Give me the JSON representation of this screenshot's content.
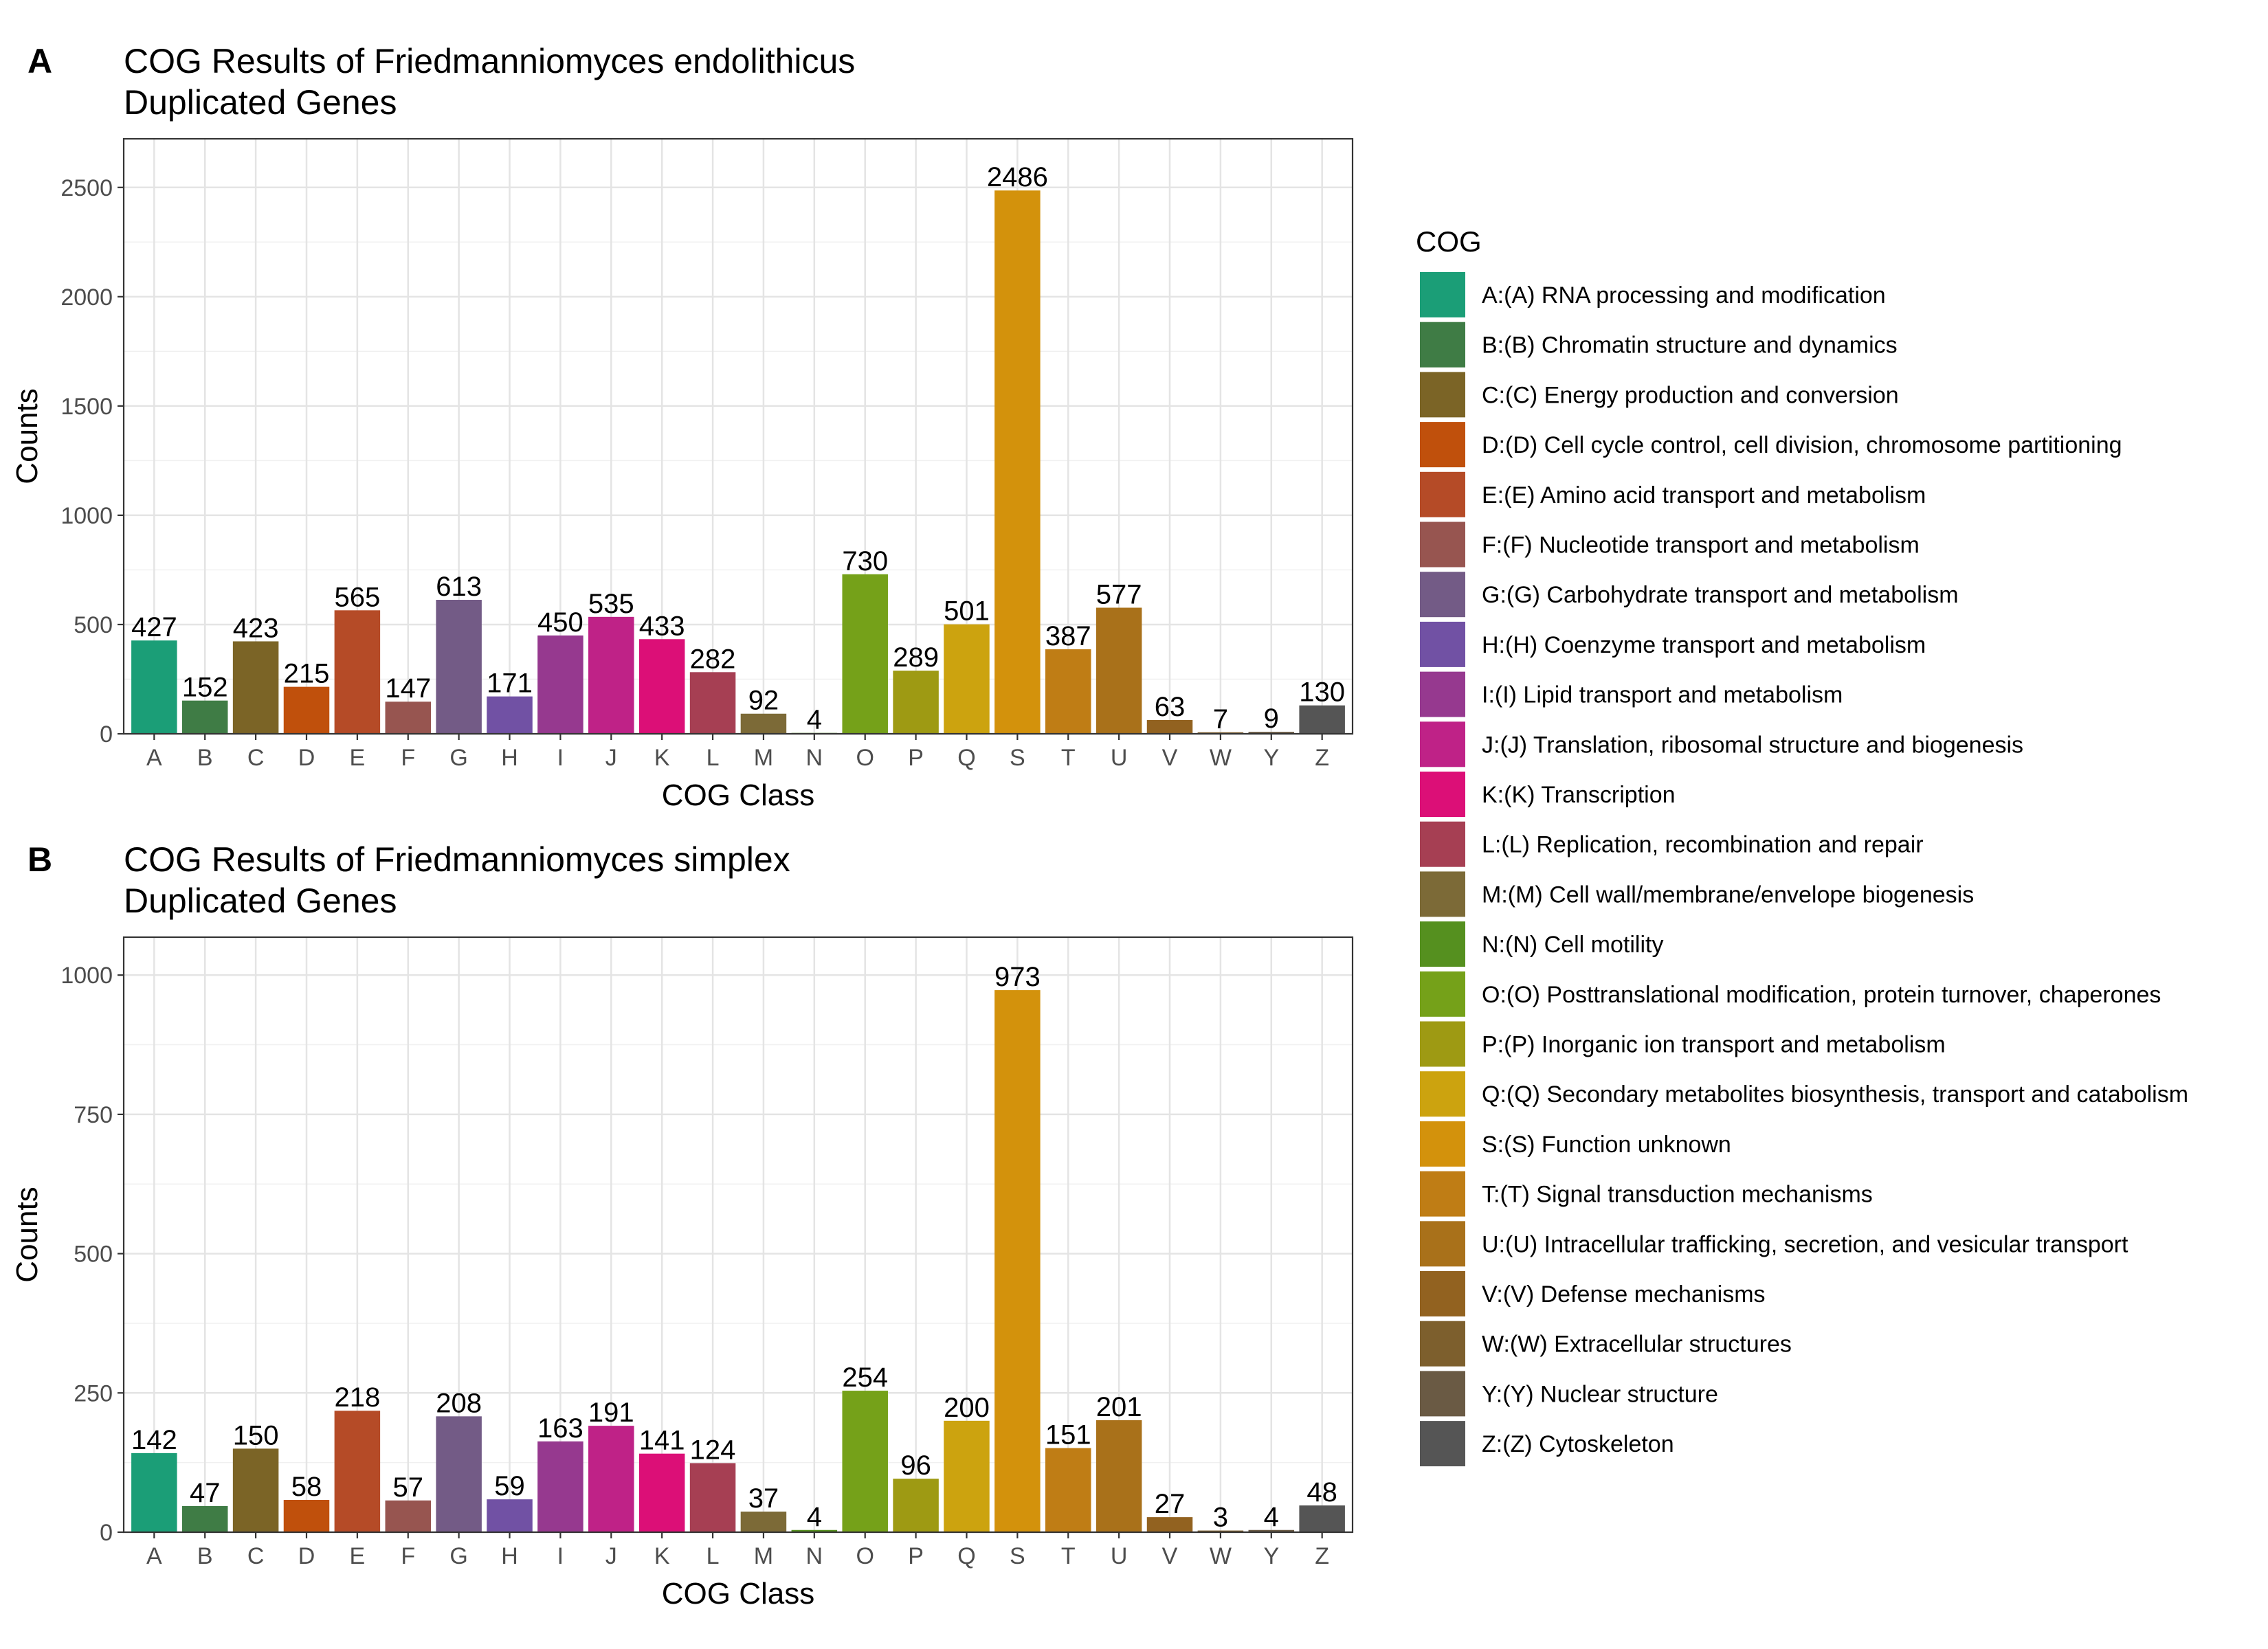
{
  "chart_data": [
    {
      "type": "bar",
      "panel_label": "A",
      "title": "COG Results of Friedmanniomyces endolithicus",
      "subtitle": "Duplicated Genes",
      "xlabel": "COG Class",
      "ylabel": "Counts",
      "ylim": [
        0,
        2600
      ],
      "yticks": [
        0,
        500,
        1000,
        1500,
        2000,
        2500
      ],
      "grid": true,
      "categories": [
        "A",
        "B",
        "C",
        "D",
        "E",
        "F",
        "G",
        "H",
        "I",
        "J",
        "K",
        "L",
        "M",
        "N",
        "O",
        "P",
        "Q",
        "S",
        "T",
        "U",
        "V",
        "W",
        "Y",
        "Z"
      ],
      "values": [
        427,
        152,
        423,
        215,
        565,
        147,
        613,
        171,
        450,
        535,
        433,
        282,
        92,
        4,
        730,
        289,
        501,
        2486,
        387,
        577,
        63,
        7,
        9,
        130
      ],
      "value_labels": [
        "427",
        "152",
        "423",
        "215",
        "565",
        "147",
        "613",
        "171",
        "450",
        "535",
        "433",
        "282",
        "92",
        "4",
        "730",
        "289",
        "501",
        "2486",
        "387",
        "577",
        "63",
        "7",
        "9",
        "130"
      ]
    },
    {
      "type": "bar",
      "panel_label": "B",
      "title": "COG Results of Friedmanniomyces simplex",
      "subtitle": "Duplicated Genes",
      "xlabel": "COG Class",
      "ylabel": "Counts",
      "ylim": [
        0,
        1020
      ],
      "yticks": [
        0,
        250,
        500,
        750,
        1000
      ],
      "grid": true,
      "categories": [
        "A",
        "B",
        "C",
        "D",
        "E",
        "F",
        "G",
        "H",
        "I",
        "J",
        "K",
        "L",
        "M",
        "N",
        "O",
        "P",
        "Q",
        "S",
        "T",
        "U",
        "V",
        "W",
        "Y",
        "Z"
      ],
      "values": [
        142,
        47,
        150,
        58,
        218,
        57,
        208,
        59,
        163,
        191,
        141,
        124,
        37,
        4,
        254,
        96,
        200,
        973,
        151,
        201,
        27,
        3,
        4,
        48
      ],
      "value_labels": [
        "142",
        "47",
        "150",
        "58",
        "218",
        "57",
        "208",
        "59",
        "163",
        "191",
        "141",
        "124",
        "37",
        "4",
        "254",
        "96",
        "200",
        "973",
        "151",
        "201",
        "27",
        "3",
        "4",
        "48"
      ]
    }
  ],
  "legend": {
    "title": "COG",
    "placement": "right",
    "items": [
      {
        "code": "A",
        "label": "A:(A) RNA processing and modification",
        "color": "#1b9e77"
      },
      {
        "code": "B",
        "label": "B:(B) Chromatin structure and dynamics",
        "color": "#3f7c45"
      },
      {
        "code": "C",
        "label": "C:(C) Energy production and conversion",
        "color": "#7b6426"
      },
      {
        "code": "D",
        "label": "D:(D) Cell cycle control, cell division, chromosome partitioning",
        "color": "#c0500c"
      },
      {
        "code": "E",
        "label": "E:(E) Amino acid transport and metabolism",
        "color": "#b54b27"
      },
      {
        "code": "F",
        "label": "F:(F) Nucleotide transport and metabolism",
        "color": "#975550"
      },
      {
        "code": "G",
        "label": "G:(G) Carbohydrate transport and metabolism",
        "color": "#735b86"
      },
      {
        "code": "H",
        "label": "H:(H) Coenzyme transport and metabolism",
        "color": "#7151a4"
      },
      {
        "code": "I",
        "label": "I:(I) Lipid transport and metabolism",
        "color": "#96398f"
      },
      {
        "code": "J",
        "label": "J:(J) Translation, ribosomal structure and biogenesis",
        "color": "#bf2287"
      },
      {
        "code": "K",
        "label": "K:(K) Transcription",
        "color": "#dc0f77"
      },
      {
        "code": "L",
        "label": "L:(L) Replication, recombination and repair",
        "color": "#a63f53"
      },
      {
        "code": "M",
        "label": "M:(M) Cell wall/membrane/envelope biogenesis",
        "color": "#7c6a37"
      },
      {
        "code": "N",
        "label": "N:(N) Cell motility",
        "color": "#55901f"
      },
      {
        "code": "O",
        "label": "O:(O) Posttranslational modification, protein turnover, chaperones",
        "color": "#75a119"
      },
      {
        "code": "P",
        "label": "P:(P) Inorganic ion transport and metabolism",
        "color": "#9e9a13"
      },
      {
        "code": "Q",
        "label": "Q:(Q) Secondary metabolites biosynthesis, transport and catabolism",
        "color": "#cca30f"
      },
      {
        "code": "S",
        "label": "S:(S) Function unknown",
        "color": "#d3920c"
      },
      {
        "code": "T",
        "label": "T:(T) Signal transduction mechanisms",
        "color": "#bf7d15"
      },
      {
        "code": "U",
        "label": "U:(U) Intracellular trafficking, secretion, and vesicular transport",
        "color": "#a9711a"
      },
      {
        "code": "V",
        "label": "V:(V) Defense mechanisms",
        "color": "#926220"
      },
      {
        "code": "W",
        "label": "W:(W) Extracellular structures",
        "color": "#7d5f2d"
      },
      {
        "code": "Y",
        "label": "Y:(Y) Nuclear structure",
        "color": "#6a5a44"
      },
      {
        "code": "Z",
        "label": "Z:(Z) Cytoskeleton",
        "color": "#555555"
      }
    ]
  }
}
